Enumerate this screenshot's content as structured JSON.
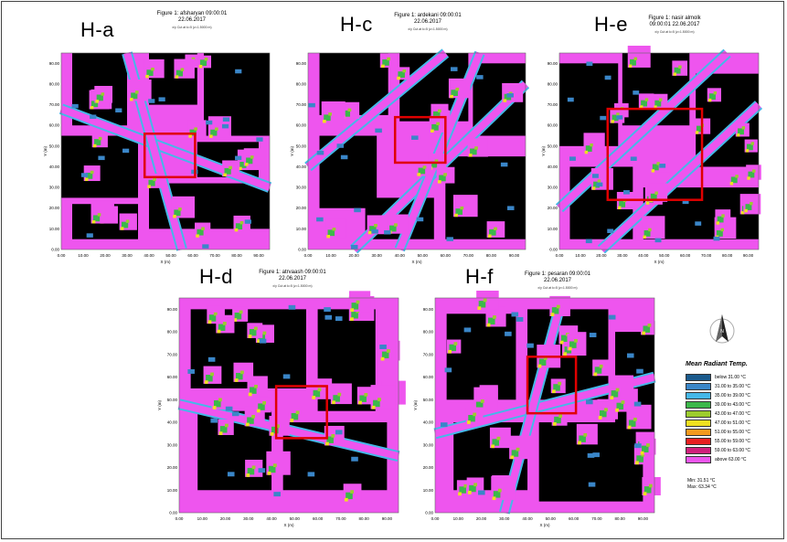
{
  "chart_data": [
    {
      "type": "heatmap",
      "panel_label": "H-a",
      "title": "Figure 1: afsharyan 09:00:01",
      "date": "22.06.2017",
      "subtitle": "x/y Cut at k=5 (z=1.5000 m)",
      "xlabel": "X (m)",
      "ylabel": "Y (m)",
      "xlim": [
        0,
        95
      ],
      "ylim": [
        0,
        95
      ],
      "xticks": [
        "0.00",
        "10.00",
        "20.00",
        "30.00",
        "40.00",
        "50.00",
        "60.00",
        "70.00",
        "80.00",
        "90.00"
      ],
      "yticks": [
        "0.00",
        "10.00",
        "20.00",
        "30.00",
        "40.00",
        "50.00",
        "60.00",
        "70.00",
        "80.00",
        "90.00"
      ],
      "highlight_box": [
        38,
        61,
        35,
        56
      ]
    },
    {
      "type": "heatmap",
      "panel_label": "H-c",
      "title": "Figure 1: ardekani 09:00:01",
      "date": "22.06.2017",
      "subtitle": "x/y Cut at k=5 (z=1.5000 m)",
      "xlabel": "X (m)",
      "ylabel": "Y (m)",
      "xlim": [
        0,
        95
      ],
      "ylim": [
        0,
        95
      ],
      "xticks": [
        "0.00",
        "10.00",
        "20.00",
        "30.00",
        "40.00",
        "50.00",
        "60.00",
        "70.00",
        "80.00",
        "90.00"
      ],
      "yticks": [
        "0.00",
        "10.00",
        "20.00",
        "30.00",
        "40.00",
        "50.00",
        "60.00",
        "70.00",
        "80.00",
        "90.00"
      ],
      "highlight_box": [
        38,
        60,
        42,
        64
      ]
    },
    {
      "type": "heatmap",
      "panel_label": "H-e",
      "title": "Figure 1: nasir almolk",
      "date": "09:00:01 22.06.2017",
      "subtitle": "x/y Cut at k=5 (z=1.5000 m)",
      "xlabel": "X (m)",
      "ylabel": "Y (m)",
      "xlim": [
        0,
        95
      ],
      "ylim": [
        0,
        95
      ],
      "xticks": [
        "0.00",
        "10.00",
        "20.00",
        "30.00",
        "40.00",
        "50.00",
        "60.00",
        "70.00",
        "80.00",
        "90.00"
      ],
      "yticks": [
        "0.00",
        "10.00",
        "20.00",
        "30.00",
        "40.00",
        "50.00",
        "60.00",
        "70.00",
        "80.00",
        "90.00"
      ],
      "highlight_box": [
        23,
        68,
        24,
        68
      ]
    },
    {
      "type": "heatmap",
      "panel_label": "H-d",
      "title": "Figure 1: atrvaash 09:00:01",
      "date": "22.06.2017",
      "subtitle": "x/y Cut at k=5 (z=1.5000 m)",
      "xlabel": "X (m)",
      "ylabel": "Y (m)",
      "xlim": [
        0,
        95
      ],
      "ylim": [
        0,
        95
      ],
      "xticks": [
        "0.00",
        "10.00",
        "20.00",
        "30.00",
        "40.00",
        "50.00",
        "60.00",
        "70.00",
        "80.00",
        "90.00"
      ],
      "yticks": [
        "0.00",
        "10.00",
        "20.00",
        "30.00",
        "40.00",
        "50.00",
        "60.00",
        "70.00",
        "80.00",
        "90.00"
      ],
      "highlight_box": [
        42,
        64,
        33,
        56
      ]
    },
    {
      "type": "heatmap",
      "panel_label": "H-f",
      "title": "Figure 1: pesaran 09:00:01",
      "date": "22.06.2017",
      "subtitle": "x/y Cut at k=5 (z=1.5000 m)",
      "xlabel": "X (m)",
      "ylabel": "Y (m)",
      "xlim": [
        0,
        95
      ],
      "ylim": [
        0,
        95
      ],
      "xticks": [
        "0.00",
        "10.00",
        "20.00",
        "30.00",
        "40.00",
        "50.00",
        "60.00",
        "70.00",
        "80.00",
        "90.00"
      ],
      "yticks": [
        "0.00",
        "10.00",
        "20.00",
        "30.00",
        "40.00",
        "50.00",
        "60.00",
        "70.00",
        "80.00",
        "90.00"
      ],
      "highlight_box": [
        40,
        61,
        44,
        69
      ]
    }
  ],
  "legend": {
    "title": "Mean Radiant Temp.",
    "entries": [
      {
        "label": "below 31.00 °C",
        "color": "#1a5a8c"
      },
      {
        "label": "31.00 to 35.00 °C",
        "color": "#3a86c8"
      },
      {
        "label": "35.00 to 39.00 °C",
        "color": "#45b8e8"
      },
      {
        "label": "39.00 to 43.00 °C",
        "color": "#3cb84a"
      },
      {
        "label": "43.00 to 47.00 °C",
        "color": "#9ccc2e"
      },
      {
        "label": "47.00 to 51.00 °C",
        "color": "#f0e020"
      },
      {
        "label": "51.00 to 55.00 °C",
        "color": "#f59a1e"
      },
      {
        "label": "55.00 to 59.00 °C",
        "color": "#e82020"
      },
      {
        "label": "59.00 to 63.00 °C",
        "color": "#d0207c"
      },
      {
        "label": "above 63.00 °C",
        "color": "#ee55ee"
      }
    ],
    "min": "Min: 31.51 °C",
    "max": "Max: 63.34 °C"
  },
  "colors": {
    "building": "#000000",
    "highlight": "#e00000"
  },
  "icons": {
    "north_arrow": "north-arrow-icon"
  }
}
